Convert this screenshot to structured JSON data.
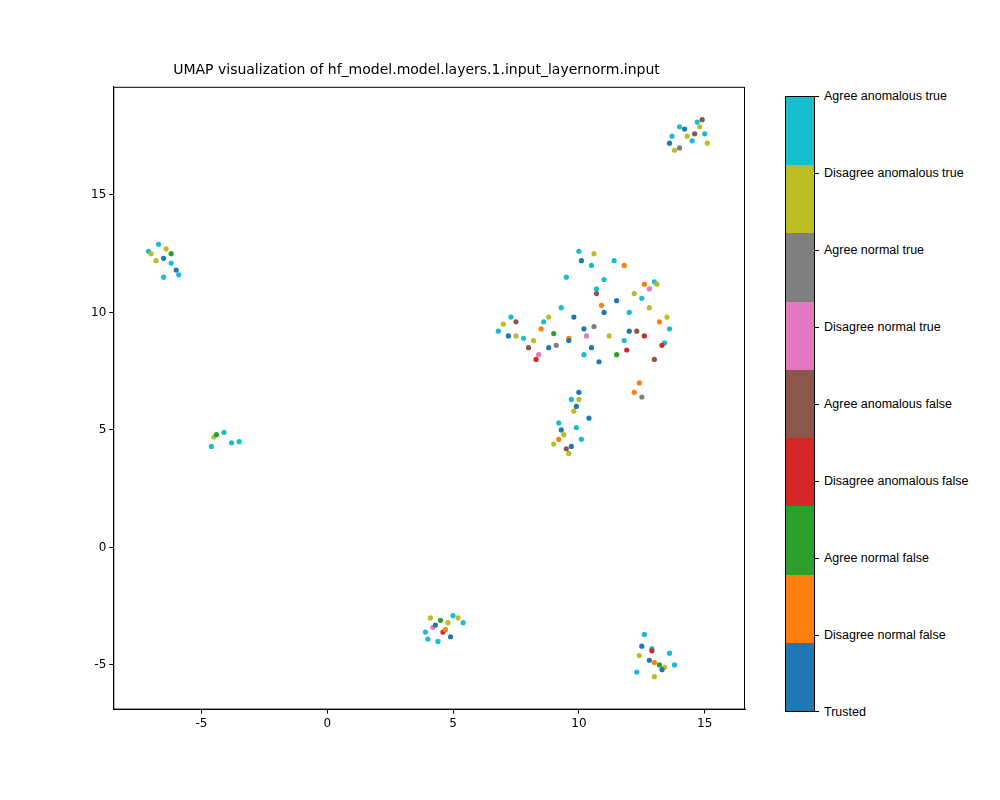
{
  "chart_data": {
    "type": "scatter",
    "title": "UMAP visualization of hf_model.model.layers.1.input_layernorm.input",
    "xlim": [
      -8.5,
      16.6
    ],
    "ylim": [
      -6.9,
      19.6
    ],
    "xticks": [
      -5,
      0,
      5,
      10,
      15
    ],
    "yticks": [
      -5,
      0,
      5,
      10,
      15
    ],
    "grid": false,
    "series": [
      {
        "name": "Trusted",
        "color": "#1f77b4",
        "x": [
          10.2,
          9.8,
          10.5,
          11.0,
          9.6,
          10.1,
          10.8,
          11.5,
          12.0,
          9.9,
          10.4,
          9.3,
          9.7,
          10.0,
          13.6,
          14.2,
          -6.5,
          -6.0,
          4.3,
          4.9,
          12.8,
          13.3,
          12.5,
          8.8,
          7.2
        ],
        "y": [
          9.3,
          9.8,
          8.5,
          10.0,
          8.8,
          12.2,
          7.9,
          10.5,
          9.2,
          6.0,
          5.5,
          5.0,
          4.3,
          6.6,
          17.2,
          17.8,
          12.3,
          11.8,
          -3.3,
          -3.8,
          -4.8,
          -5.2,
          -4.2,
          8.5,
          9.0
        ]
      },
      {
        "name": "Disagree normal false",
        "color": "#ff7f0e",
        "x": [
          11.8,
          12.2,
          13.2,
          12.6,
          8.5,
          10.9,
          9.2,
          12.4,
          4.7,
          13.0,
          9.6
        ],
        "y": [
          12.0,
          6.6,
          9.6,
          11.2,
          9.3,
          10.3,
          4.6,
          7.0,
          -3.5,
          -4.9,
          8.9
        ]
      },
      {
        "name": "Agree normal false",
        "color": "#2ca02c",
        "x": [
          -4.4,
          9.0,
          11.5,
          13.2,
          4.5,
          -6.2
        ],
        "y": [
          4.8,
          9.1,
          8.2,
          -5.0,
          -3.1,
          12.5
        ]
      },
      {
        "name": "Disagree anomalous false",
        "color": "#d62728",
        "x": [
          12.6,
          13.3,
          4.6,
          11.9,
          8.3,
          12.9
        ],
        "y": [
          9.0,
          8.6,
          -3.6,
          8.4,
          8.0,
          -4.4
        ]
      },
      {
        "name": "Agree anomalous false",
        "color": "#8c564b",
        "x": [
          12.3,
          8.0,
          9.5,
          14.6,
          14.9,
          7.5,
          13.0,
          10.7
        ],
        "y": [
          9.2,
          8.5,
          4.2,
          17.6,
          18.2,
          9.6,
          8.0,
          10.8
        ]
      },
      {
        "name": "Disagree normal true",
        "color": "#e377c2",
        "x": [
          8.4,
          10.3,
          12.8,
          4.2
        ],
        "y": [
          8.2,
          9.0,
          11.0,
          -3.4
        ]
      },
      {
        "name": "Agree normal true",
        "color": "#7f7f7f",
        "x": [
          12.5,
          10.6,
          14.0,
          9.1
        ],
        "y": [
          6.4,
          9.4,
          17.0,
          8.6
        ]
      },
      {
        "name": "Disagree anomalous true",
        "color": "#bcbd22",
        "x": [
          9.0,
          9.4,
          9.8,
          10.0,
          12.2,
          12.8,
          13.5,
          13.1,
          7.0,
          7.5,
          8.2,
          14.3,
          14.8,
          15.1,
          13.8,
          -6.4,
          -6.8,
          -7.0,
          4.1,
          4.8,
          5.2,
          12.4,
          13.4,
          13.0,
          11.2,
          10.6,
          -4.5,
          9.6,
          8.8
        ],
        "y": [
          4.4,
          4.8,
          5.8,
          6.3,
          10.8,
          10.2,
          9.8,
          11.2,
          9.5,
          9.0,
          8.8,
          17.5,
          17.9,
          17.2,
          16.9,
          12.7,
          12.2,
          12.5,
          -3.0,
          -3.2,
          -3.0,
          -4.6,
          -5.1,
          -5.5,
          9.0,
          12.5,
          4.7,
          4.0,
          9.8
        ]
      },
      {
        "name": "Agree anomalous true",
        "color": "#17becf",
        "x": [
          10.0,
          10.5,
          11.0,
          10.7,
          11.4,
          12.0,
          12.5,
          13.0,
          13.6,
          13.4,
          6.8,
          7.3,
          7.8,
          8.6,
          9.5,
          10.2,
          11.8,
          9.2,
          9.7,
          9.9,
          10.1,
          14.0,
          14.5,
          15.0,
          13.7,
          14.7,
          -7.1,
          -6.7,
          -6.2,
          -5.9,
          -6.5,
          3.9,
          4.4,
          5.0,
          5.4,
          4.0,
          12.3,
          12.9,
          13.6,
          13.8,
          12.6,
          -4.6,
          -4.1,
          -3.5,
          -3.8,
          9.3
        ],
        "y": [
          12.6,
          12.0,
          11.4,
          11.0,
          12.2,
          10.0,
          10.6,
          11.3,
          9.3,
          8.7,
          9.2,
          9.8,
          8.9,
          9.6,
          11.5,
          8.2,
          8.8,
          5.3,
          6.3,
          5.1,
          4.6,
          17.9,
          17.3,
          17.6,
          17.5,
          18.1,
          12.6,
          12.9,
          12.1,
          11.6,
          11.5,
          -3.6,
          -4.0,
          -2.9,
          -3.2,
          -3.9,
          -5.3,
          -4.3,
          -4.5,
          -5.0,
          -3.7,
          4.3,
          4.9,
          4.5,
          4.45,
          10.2
        ]
      }
    ]
  }
}
